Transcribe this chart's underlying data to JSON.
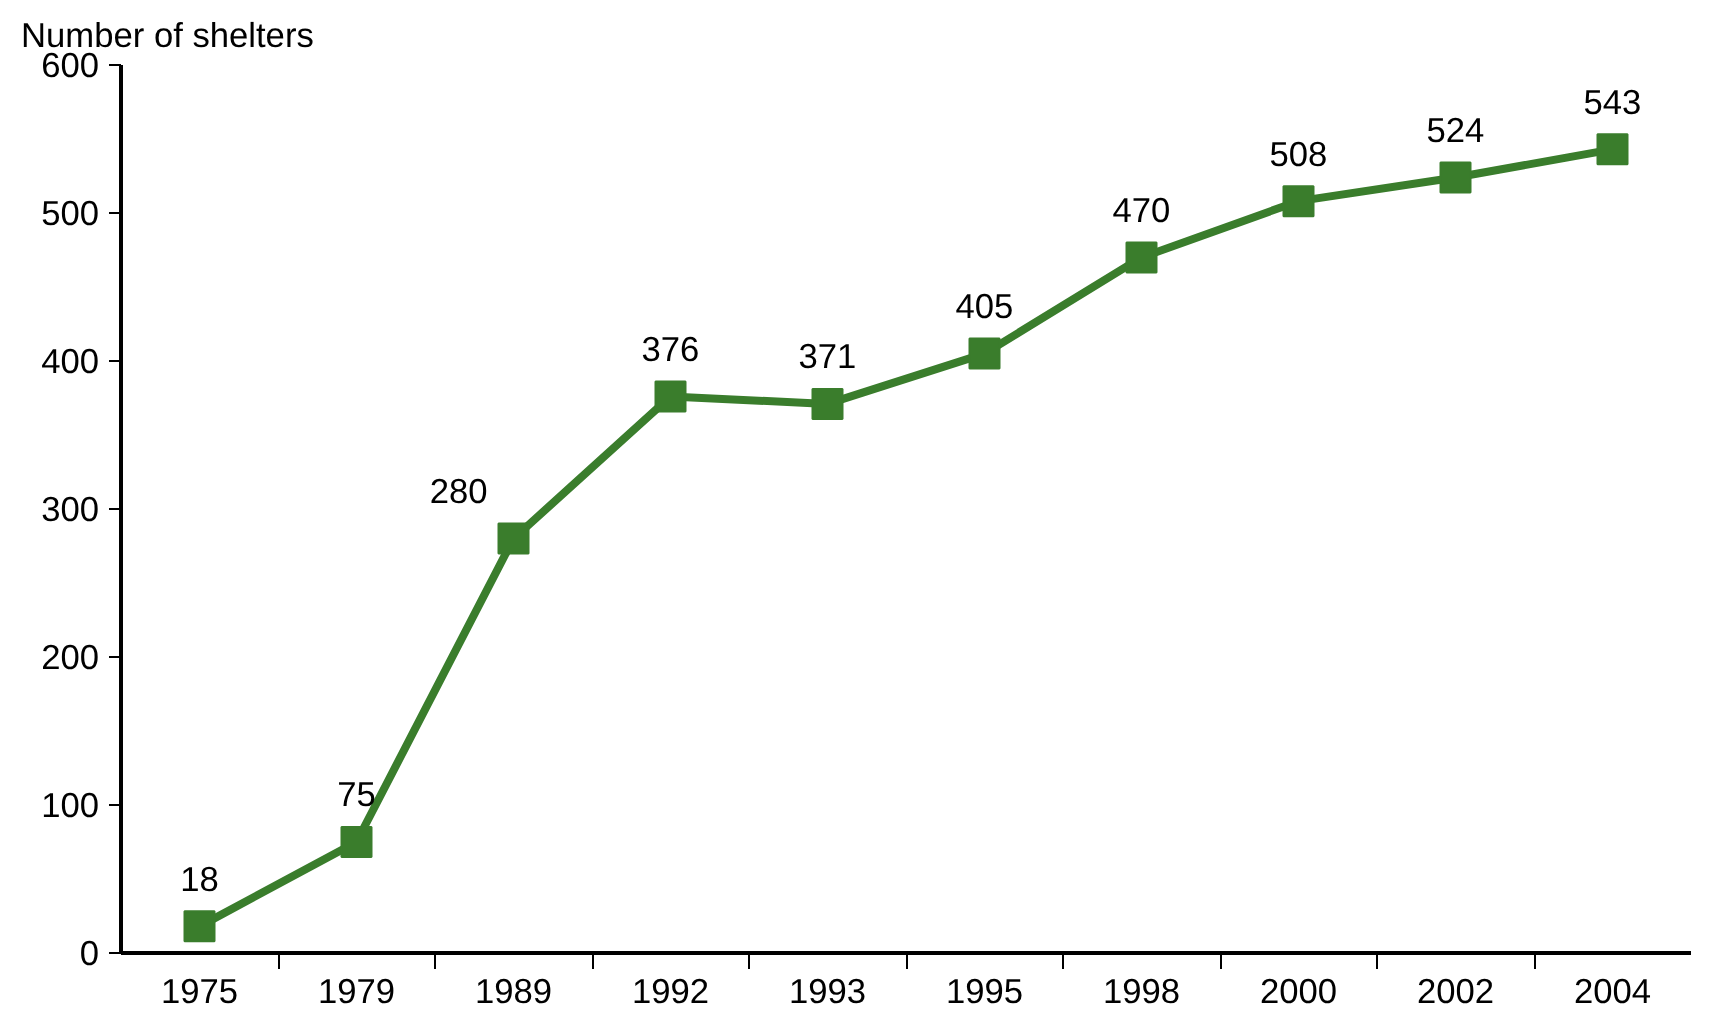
{
  "chart_data": {
    "type": "line",
    "ylabel": "Number of shelters",
    "categories": [
      "1975",
      "1979",
      "1989",
      "1992",
      "1993",
      "1995",
      "1998",
      "2000",
      "2002",
      "2004"
    ],
    "series": [
      {
        "color": "#3a7d2c",
        "values": [
          18,
          75,
          280,
          376,
          371,
          405,
          470,
          508,
          524,
          543
        ]
      }
    ],
    "ylim": [
      0,
      600
    ],
    "yticks": [
      0,
      100,
      200,
      300,
      400,
      500,
      600
    ],
    "grid": false,
    "marker": "square",
    "line_style": "solid",
    "data_labels": true
  }
}
